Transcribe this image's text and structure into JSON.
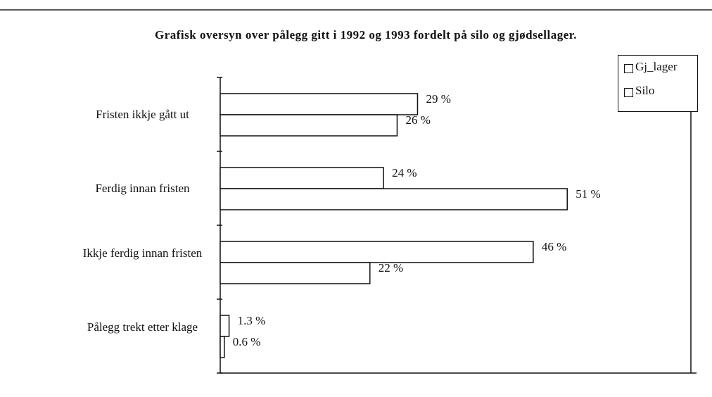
{
  "chart_data": {
    "type": "bar",
    "orientation": "horizontal",
    "title": "Grafisk oversyn over pålegg gitt i 1992 og 1993 fordelt på silo og gjødsellager.",
    "categories": [
      "Fristen ikkje gått ut",
      "Ferdig innan fristen",
      "Ikkje ferdig innan fristen",
      "Pålegg trekt etter klage"
    ],
    "series": [
      {
        "name": "Gj_lager",
        "color": "#ffffff",
        "values": [
          29,
          24,
          46,
          1.3
        ],
        "value_labels": [
          "29 %",
          "24 %",
          "46 %",
          "1.3 %"
        ]
      },
      {
        "name": "Silo",
        "color": "#ffffff",
        "values": [
          26,
          51,
          22,
          0.6
        ],
        "value_labels": [
          "26 %",
          "51 %",
          "22 %",
          "0.6 %"
        ]
      }
    ],
    "xlim": [
      0,
      70
    ],
    "legend": "top-right"
  }
}
